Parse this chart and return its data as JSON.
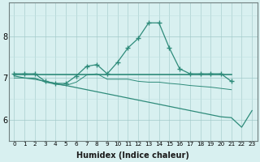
{
  "xlabel": "Humidex (Indice chaleur)",
  "x": [
    0,
    1,
    2,
    3,
    4,
    5,
    6,
    7,
    8,
    9,
    10,
    11,
    12,
    13,
    14,
    15,
    16,
    17,
    18,
    19,
    20,
    21,
    22,
    23
  ],
  "line_marked": [
    7.1,
    7.1,
    7.1,
    6.92,
    6.87,
    6.87,
    7.05,
    7.28,
    7.32,
    7.1,
    7.38,
    7.72,
    7.95,
    8.32,
    8.32,
    7.72,
    7.22,
    7.1,
    7.1,
    7.1,
    7.1,
    6.92,
    null,
    null
  ],
  "line_flat": [
    7.08,
    7.08,
    7.08,
    7.08,
    7.08,
    7.08,
    7.08,
    7.08,
    7.08,
    7.08,
    7.08,
    7.08,
    7.08,
    7.08,
    7.08,
    7.08,
    7.08,
    7.08,
    7.08,
    7.08,
    7.08,
    7.08,
    null,
    null
  ],
  "line_diag": [
    7.05,
    7.0,
    6.97,
    6.92,
    6.87,
    6.82,
    6.77,
    6.72,
    6.67,
    6.62,
    6.57,
    6.52,
    6.47,
    6.42,
    6.37,
    6.32,
    6.27,
    6.22,
    6.17,
    6.12,
    6.07,
    6.05,
    5.82,
    6.22
  ],
  "line_mid": [
    7.0,
    7.0,
    7.0,
    6.9,
    6.85,
    6.82,
    6.9,
    7.07,
    7.1,
    6.97,
    6.97,
    6.97,
    6.92,
    6.9,
    6.9,
    6.87,
    6.85,
    6.82,
    6.8,
    6.78,
    6.75,
    6.72,
    null,
    null
  ],
  "line_color": "#2e8b7a",
  "bg_color": "#d8f0f0",
  "grid_color_major": "#a0c8c8",
  "grid_color_minor": "#c0e0e0",
  "ylim": [
    5.5,
    8.8
  ],
  "yticks": [
    6,
    7,
    8
  ],
  "xlim": [
    -0.5,
    23.5
  ]
}
